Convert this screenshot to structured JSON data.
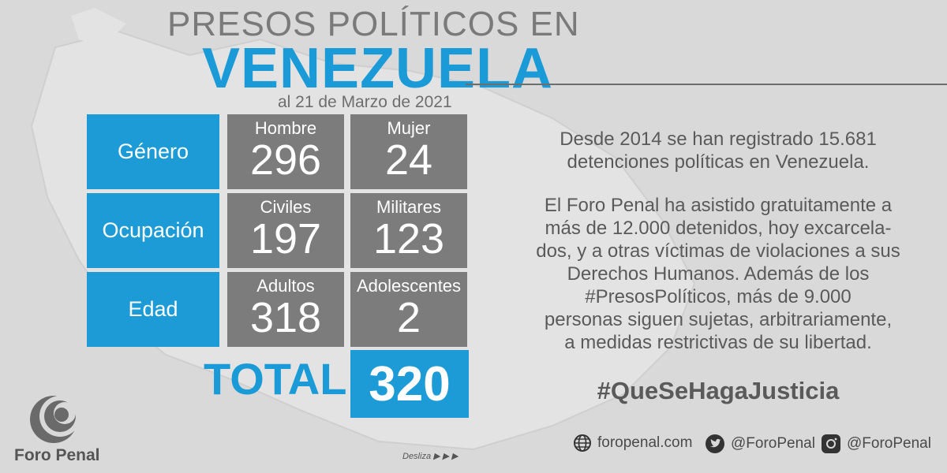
{
  "header": {
    "title_line1": "PRESOS POLÍTICOS EN",
    "title_line2": "VENEZUELA",
    "date": "al 21 de Marzo de 2021"
  },
  "rows": [
    {
      "label": "Género",
      "stats": [
        {
          "heading": "Hombre",
          "value": "296"
        },
        {
          "heading": "Mujer",
          "value": "24"
        }
      ]
    },
    {
      "label": "Ocupación",
      "stats": [
        {
          "heading": "Civiles",
          "value": "197"
        },
        {
          "heading": "Militares",
          "value": "123"
        }
      ]
    },
    {
      "label": "Edad",
      "stats": [
        {
          "heading": "Adultos",
          "value": "318"
        },
        {
          "heading": "Adolescentes",
          "value": "2"
        }
      ]
    }
  ],
  "total": {
    "label": "TOTAL",
    "value": "320"
  },
  "info": {
    "paragraph1": [
      "Desde 2014 se han registrado 15.681",
      "detenciones políticas en Venezuela."
    ],
    "paragraph2": [
      "El Foro Penal ha asistido gratuitamente a",
      "más de 12.000 detenidos, hoy excarcela-",
      "dos, y a otras víctimas de violaciones a sus",
      "Derechos Humanos. Además de los",
      "#PresosPolíticos, más de 9.000",
      "personas siguen sujetas, arbitrariamente,",
      "a medidas restrictivas de su libertad."
    ],
    "hashtag": "#QueSeHagaJusticia"
  },
  "social": {
    "website": "foropenal.com",
    "twitter": "@ForoPenal",
    "instagram": "@ForoPenal",
    "icons": [
      "globe-icon",
      "twitter-icon",
      "instagram-icon"
    ]
  },
  "brand": {
    "name": "Foro Penal"
  },
  "footer": {
    "swipe": "Desliza ▶ ▶ ▶"
  },
  "colors": {
    "accent": "#1c9bd6",
    "stat_bg": "#7c7c7c",
    "background": "#d9d9d9",
    "text_gray": "#5a5a5a"
  }
}
